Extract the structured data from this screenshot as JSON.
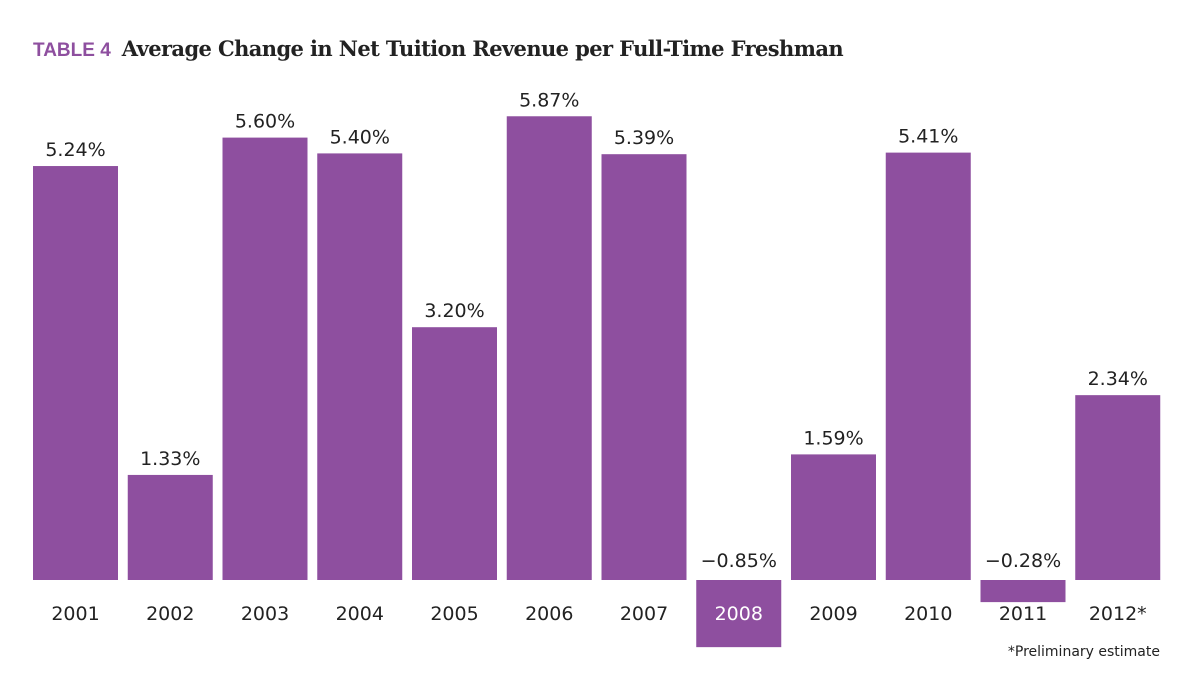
{
  "chart_data": {
    "type": "bar",
    "title_tag": "TABLE 4",
    "title": "Average Change in Net Tuition Revenue per Full-Time Freshman",
    "categories": [
      "2001",
      "2002",
      "2003",
      "2004",
      "2005",
      "2006",
      "2007",
      "2008",
      "2009",
      "2010",
      "2011",
      "2012*"
    ],
    "values": [
      5.24,
      1.33,
      5.6,
      5.4,
      3.2,
      5.87,
      5.39,
      -0.85,
      1.59,
      5.41,
      -0.28,
      2.34
    ],
    "data_labels": [
      "5.24%",
      "1.33%",
      "5.60%",
      "5.40%",
      "3.20%",
      "5.87%",
      "5.39%",
      "−0.85%",
      "1.59%",
      "5.41%",
      "−0.28%",
      "2.34%"
    ],
    "xlabel": "",
    "ylabel": "",
    "ylim": [
      -0.85,
      5.87
    ],
    "grid": false,
    "footnote": "*Preliminary estimate",
    "colors": {
      "bar": "#8e4f9f",
      "text": "#222222"
    }
  }
}
